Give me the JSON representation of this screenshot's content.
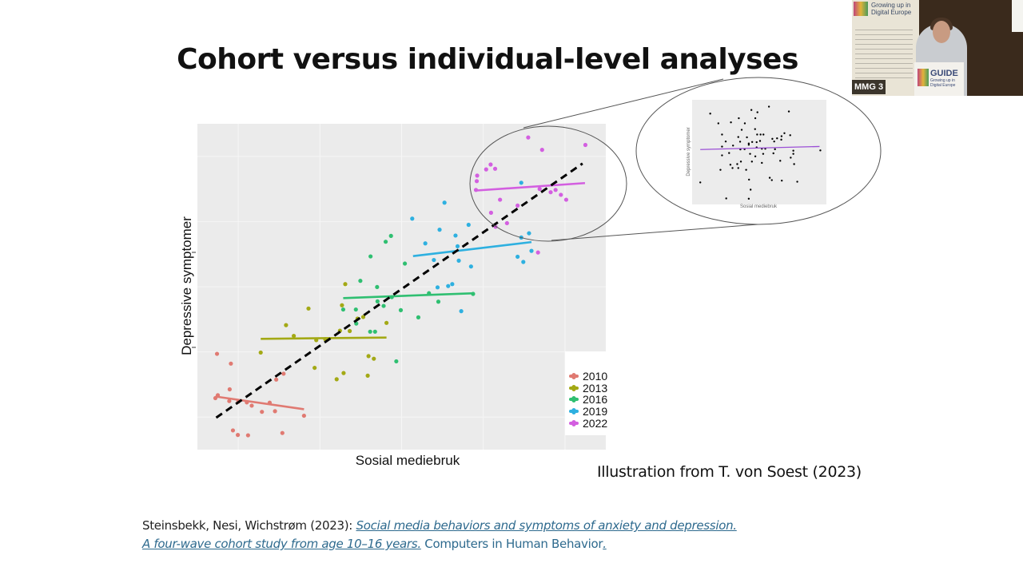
{
  "slide": {
    "title": "Cohort versus individual-level analyses",
    "credit": "Illustration from T. von Soest (2023)",
    "citation": {
      "authors": "Steinsbekk, Nesi, Wichstrøm (2023): ",
      "link_line1": "Social media behaviors and symptoms of anxiety and depression.",
      "link_line2": " A four-wave cohort study from age 10–16 years.",
      "journal": " Computers in Human Behavior",
      "journal_end": "."
    }
  },
  "webcam": {
    "banner_text": "Growing up in Digital Europe",
    "podium_title": "GUIDE",
    "podium_sub": "Growing up in Digital Europe",
    "room_label": "MMG 3"
  },
  "chart_data": [
    {
      "type": "scatter",
      "title": "",
      "xlabel": "Sosial mediebruk",
      "ylabel": "Depressive symptomer",
      "xlim": [
        0,
        100
      ],
      "ylim": [
        0,
        100
      ],
      "grid": true,
      "legend_position": "bottom-right",
      "series": [
        {
          "name": "2010",
          "color": "#e07a72",
          "points": [
            [
              4.8,
              29.4
            ],
            [
              8.2,
              26.4
            ],
            [
              7.9,
              18.5
            ],
            [
              4.4,
              15.8
            ],
            [
              5.0,
              16.7
            ],
            [
              7.8,
              14.9
            ],
            [
              10.0,
              14.7
            ],
            [
              12.1,
              14.5
            ],
            [
              13.3,
              13.5
            ],
            [
              15.8,
              11.6
            ],
            [
              17.7,
              14.4
            ],
            [
              19.0,
              11.8
            ],
            [
              19.3,
              21.5
            ],
            [
              21.1,
              23.3
            ],
            [
              26.1,
              10.4
            ],
            [
              8.7,
              5.9
            ],
            [
              9.9,
              4.5
            ],
            [
              12.4,
              4.4
            ],
            [
              20.8,
              5.1
            ]
          ],
          "trend": [
            [
              4.4,
              16.3
            ],
            [
              26.1,
              12.4
            ]
          ]
        },
        {
          "name": "2013",
          "color": "#a3a915",
          "points": [
            [
              15.5,
              29.8
            ],
            [
              21.7,
              38.2
            ],
            [
              23.6,
              34.9
            ],
            [
              27.2,
              43.3
            ],
            [
              28.7,
              25.1
            ],
            [
              29.1,
              33.6
            ],
            [
              31.3,
              33.9
            ],
            [
              34.1,
              21.6
            ],
            [
              34.9,
              36.5
            ],
            [
              35.4,
              44.3
            ],
            [
              35.8,
              23.5
            ],
            [
              36.2,
              50.8
            ],
            [
              37.3,
              36.4
            ],
            [
              39.2,
              40.2
            ],
            [
              40.6,
              40.7
            ],
            [
              41.7,
              22.7
            ],
            [
              41.9,
              28.7
            ],
            [
              43.2,
              27.9
            ],
            [
              46.3,
              38.9
            ]
          ],
          "trend": [
            [
              15.5,
              34.0
            ],
            [
              46.3,
              34.4
            ]
          ]
        },
        {
          "name": "2016",
          "color": "#2fbf71",
          "points": [
            [
              35.7,
              43.0
            ],
            [
              38.8,
              43.0
            ],
            [
              38.9,
              38.7
            ],
            [
              39.9,
              51.8
            ],
            [
              42.4,
              59.3
            ],
            [
              42.3,
              36.2
            ],
            [
              43.5,
              36.2
            ],
            [
              44.0,
              49.9
            ],
            [
              44.1,
              45.5
            ],
            [
              45.6,
              44.1
            ],
            [
              46.1,
              63.8
            ],
            [
              47.4,
              65.6
            ],
            [
              47.6,
              46.8
            ],
            [
              49.8,
              42.8
            ],
            [
              50.8,
              57.1
            ],
            [
              54.1,
              40.6
            ],
            [
              48.7,
              27.1
            ],
            [
              56.7,
              48.0
            ],
            [
              59.0,
              45.4
            ],
            [
              67.5,
              47.8
            ]
          ],
          "trend": [
            [
              35.7,
              46.5
            ],
            [
              67.8,
              48.0
            ]
          ]
        },
        {
          "name": "2019",
          "color": "#2eb0e0",
          "points": [
            [
              52.6,
              70.9
            ],
            [
              55.8,
              63.3
            ],
            [
              57.9,
              58.2
            ],
            [
              59.3,
              67.5
            ],
            [
              60.5,
              75.8
            ],
            [
              58.8,
              49.8
            ],
            [
              61.4,
              50.2
            ],
            [
              62.4,
              50.8
            ],
            [
              63.2,
              65.7
            ],
            [
              63.7,
              62.4
            ],
            [
              64.0,
              58.0
            ],
            [
              64.6,
              42.5
            ],
            [
              66.4,
              69.0
            ],
            [
              67.0,
              56.2
            ],
            [
              78.4,
              59.2
            ],
            [
              79.3,
              81.9
            ],
            [
              79.3,
              65.1
            ],
            [
              79.8,
              57.6
            ],
            [
              81.2,
              66.4
            ],
            [
              81.8,
              61.0
            ]
          ],
          "trend": [
            [
              52.8,
              59.4
            ],
            [
              81.8,
              63.7
            ]
          ]
        },
        {
          "name": "2022",
          "color": "#d35fe0",
          "points": [
            [
              68.5,
              84.1
            ],
            [
              68.4,
              82.4
            ],
            [
              68.2,
              79.7
            ],
            [
              70.7,
              86.0
            ],
            [
              71.8,
              87.5
            ],
            [
              72.9,
              86.2
            ],
            [
              74.1,
              76.7
            ],
            [
              71.9,
              72.7
            ],
            [
              73.0,
              68.4
            ],
            [
              75.8,
              69.5
            ],
            [
              78.4,
              74.9
            ],
            [
              81.0,
              95.8
            ],
            [
              83.8,
              80.0
            ],
            [
              84.4,
              92.0
            ],
            [
              86.5,
              79.0
            ],
            [
              87.7,
              79.7
            ],
            [
              89.0,
              78.2
            ],
            [
              90.3,
              76.7
            ],
            [
              83.4,
              60.5
            ],
            [
              95.0,
              93.5
            ]
          ],
          "trend": [
            [
              68.1,
              79.5
            ],
            [
              94.9,
              81.8
            ]
          ]
        }
      ],
      "overall_trend": [
        [
          4.6,
          9.8
        ],
        [
          94.3,
          87.8
        ]
      ]
    },
    {
      "type": "scatter",
      "title": "",
      "xlabel": "Sosial mediebruk",
      "ylabel": "Depressive symptomer",
      "xlim": [
        0,
        100
      ],
      "ylim": [
        0,
        100
      ],
      "color": "#000000",
      "trend_color": "#9b4fd6",
      "points": [
        [
          12.6,
          88.7
        ],
        [
          18.8,
          79.0
        ],
        [
          28.4,
          80.0
        ],
        [
          34.4,
          84.1
        ],
        [
          44.0,
          92.3
        ],
        [
          48.6,
          90.0
        ],
        [
          57.4,
          95.6
        ],
        [
          72.6,
          90.8
        ],
        [
          21.6,
          67.9
        ],
        [
          24.4,
          61.0
        ],
        [
          21.6,
          55.9
        ],
        [
          21.6,
          47.2
        ],
        [
          20.4,
          32.8
        ],
        [
          5.0,
          20.3
        ],
        [
          24.8,
          4.4
        ],
        [
          42.0,
          4.1
        ],
        [
          43.4,
          13.1
        ],
        [
          42.2,
          23.1
        ],
        [
          28.0,
          37.9
        ],
        [
          29.6,
          34.6
        ],
        [
          33.2,
          38.5
        ],
        [
          34.0,
          34.6
        ],
        [
          36.0,
          41.0
        ],
        [
          40.0,
          32.8
        ],
        [
          47.0,
          84.1
        ],
        [
          46.8,
          73.3
        ],
        [
          36.6,
          72.6
        ],
        [
          39.0,
          79.0
        ],
        [
          34.0,
          65.4
        ],
        [
          35.4,
          60.8
        ],
        [
          40.6,
          65.1
        ],
        [
          42.0,
          57.7
        ],
        [
          44.6,
          60.5
        ],
        [
          48.4,
          67.9
        ],
        [
          51.0,
          67.9
        ],
        [
          53.2,
          67.9
        ],
        [
          50.6,
          61.5
        ],
        [
          48.0,
          60.3
        ],
        [
          52.0,
          53.8
        ],
        [
          54.6,
          53.8
        ],
        [
          60.0,
          63.6
        ],
        [
          61.4,
          61.0
        ],
        [
          63.6,
          64.1
        ],
        [
          66.8,
          62.8
        ],
        [
          69.2,
          69.2
        ],
        [
          73.6,
          67.2
        ],
        [
          67.0,
          66.2
        ],
        [
          62.0,
          53.3
        ],
        [
          60.8,
          49.2
        ],
        [
          76.0,
          51.8
        ],
        [
          76.0,
          48.7
        ],
        [
          74.0,
          44.9
        ],
        [
          76.6,
          38.5
        ],
        [
          66.0,
          41.8
        ],
        [
          58.0,
          24.9
        ],
        [
          59.6,
          22.6
        ],
        [
          67.2,
          22.1
        ],
        [
          79.0,
          21.0
        ],
        [
          96.6,
          52.1
        ],
        [
          43.0,
          48.7
        ],
        [
          44.4,
          41.0
        ],
        [
          47.0,
          46.2
        ],
        [
          52.0,
          39.7
        ],
        [
          53.0,
          48.7
        ],
        [
          30.0,
          56.9
        ],
        [
          27.0,
          49.5
        ],
        [
          38.8,
          53.3
        ],
        [
          35.6,
          53.1
        ],
        [
          48.0,
          55.1
        ],
        [
          42.0,
          59.0
        ]
      ],
      "trend": [
        [
          5,
          53
        ],
        [
          96,
          56
        ]
      ]
    }
  ]
}
